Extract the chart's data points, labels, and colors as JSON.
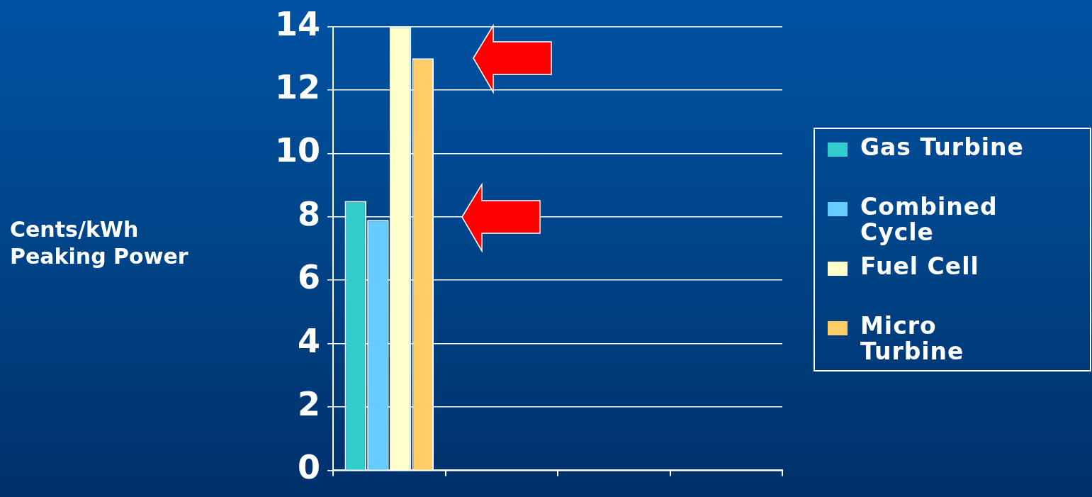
{
  "chart_data": {
    "type": "bar",
    "categories": [
      null,
      null,
      null,
      null
    ],
    "series": [
      {
        "name": "Gas Turbine",
        "color": "#33cccc",
        "values": [
          8.5,
          null,
          null,
          null
        ]
      },
      {
        "name": "Combined Cycle",
        "color": "#66ccff",
        "values": [
          7.9,
          null,
          null,
          null
        ]
      },
      {
        "name": "Fuel Cell",
        "color": "#ffffcc",
        "values": [
          14,
          null,
          null,
          null
        ]
      },
      {
        "name": "Micro Turbine",
        "color": "#ffcc66",
        "values": [
          13,
          null,
          null,
          null
        ]
      }
    ],
    "ylabel": "Cents/kWh Peaking Power",
    "ylim": [
      0,
      14
    ],
    "yticks": [
      0,
      2,
      4,
      6,
      8,
      10,
      12,
      14
    ],
    "grid": "y",
    "legend": "right"
  }
}
